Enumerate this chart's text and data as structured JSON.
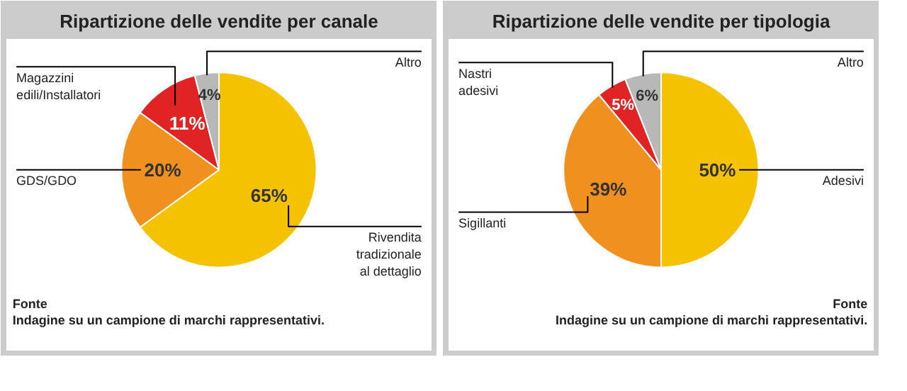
{
  "chart_data": [
    {
      "type": "pie",
      "title": "Ripartizione delle vendite per canale",
      "categories": [
        "Rivendita tradizionale al dettaglio",
        "GDS/GDO",
        "Magazzini edili/Installatori",
        "Altro"
      ],
      "values": [
        65,
        20,
        11,
        4
      ],
      "colors": [
        "#f5c200",
        "#f0901e",
        "#e02424",
        "#b8b8b8"
      ],
      "value_labels": [
        "65%",
        "20%",
        "11%",
        "4%"
      ],
      "legend": false,
      "annotations": [
        "Fonte",
        "Indagine su un campione di marchi rappresentativi."
      ]
    },
    {
      "type": "pie",
      "title": "Ripartizione delle vendite per tipologia",
      "categories": [
        "Adesivi",
        "Sigillanti",
        "Nastri adesivi",
        "Altro"
      ],
      "values": [
        50,
        39,
        5,
        6
      ],
      "colors": [
        "#f5c200",
        "#f0901e",
        "#e02424",
        "#b8b8b8"
      ],
      "value_labels": [
        "50%",
        "39%",
        "5%",
        "6%"
      ],
      "legend": false,
      "annotations": [
        "Fonte",
        "Indagine su un campione di marchi rappresentativi."
      ]
    }
  ]
}
